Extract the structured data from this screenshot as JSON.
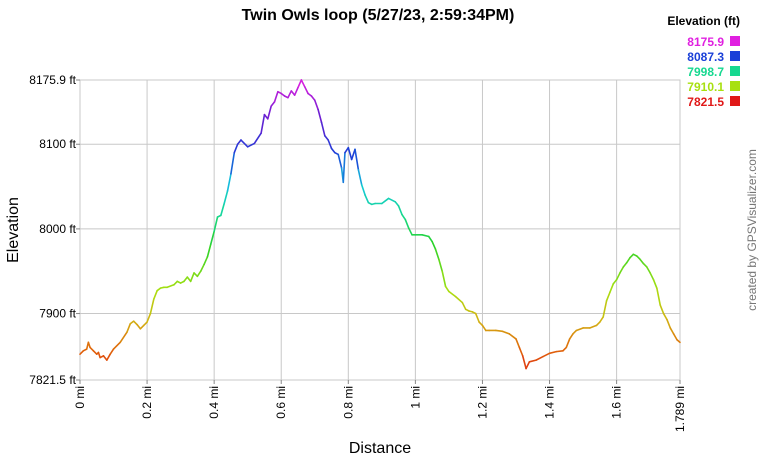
{
  "chart_data": {
    "type": "line",
    "title": "Twin Owls loop (5/27/23, 2:59:34PM)",
    "xlabel": "Distance",
    "ylabel": "Elevation",
    "xlim": [
      0,
      1.789
    ],
    "ylim": [
      7821.5,
      8175.9
    ],
    "x_ticks": [
      {
        "value": 0,
        "label": "0 mi"
      },
      {
        "value": 0.2,
        "label": "0.2 mi"
      },
      {
        "value": 0.4,
        "label": "0.4 mi"
      },
      {
        "value": 0.6,
        "label": "0.6 mi"
      },
      {
        "value": 0.8,
        "label": "0.8 mi"
      },
      {
        "value": 1.0,
        "label": "1 mi"
      },
      {
        "value": 1.2,
        "label": "1.2 mi"
      },
      {
        "value": 1.4,
        "label": "1.4 mi"
      },
      {
        "value": 1.6,
        "label": "1.6 mi"
      },
      {
        "value": 1.789,
        "label": "1.789 mi"
      }
    ],
    "y_ticks": [
      {
        "value": 7821.5,
        "label": "7821.5 ft"
      },
      {
        "value": 7900,
        "label": "7900 ft"
      },
      {
        "value": 8000,
        "label": "8000 ft"
      },
      {
        "value": 8100,
        "label": "8100 ft"
      },
      {
        "value": 8175.9,
        "label": "8175.9 ft"
      }
    ],
    "grid": true,
    "legend": {
      "title": "Elevation (ft)",
      "placement": "top-right",
      "items": [
        {
          "label": "8175.9",
          "color": "#e020e0"
        },
        {
          "label": "8087.3",
          "color": "#1a40d8"
        },
        {
          "label": "7998.7",
          "color": "#16d890"
        },
        {
          "label": "7910.1",
          "color": "#a8e010"
        },
        {
          "label": "7821.5",
          "color": "#e01818"
        }
      ]
    },
    "series": [
      {
        "x": [
          0,
          0.01,
          0.02,
          0.025,
          0.03,
          0.04,
          0.05,
          0.055,
          0.06,
          0.07,
          0.08,
          0.09,
          0.1,
          0.12,
          0.14,
          0.15,
          0.16,
          0.17,
          0.18,
          0.19,
          0.2,
          0.21,
          0.22,
          0.23,
          0.24,
          0.25,
          0.26,
          0.28,
          0.29,
          0.3,
          0.31,
          0.32,
          0.33,
          0.34,
          0.35,
          0.36,
          0.37,
          0.38,
          0.39,
          0.4,
          0.41,
          0.42,
          0.43,
          0.44,
          0.45,
          0.46,
          0.47,
          0.48,
          0.5,
          0.52,
          0.54,
          0.55,
          0.56,
          0.57,
          0.58,
          0.59,
          0.6,
          0.61,
          0.62,
          0.63,
          0.64,
          0.65,
          0.66,
          0.67,
          0.68,
          0.69,
          0.7,
          0.71,
          0.72,
          0.73,
          0.74,
          0.75,
          0.76,
          0.77,
          0.78,
          0.785,
          0.79,
          0.8,
          0.81,
          0.82,
          0.83,
          0.84,
          0.85,
          0.86,
          0.87,
          0.88,
          0.9,
          0.92,
          0.94,
          0.95,
          0.96,
          0.97,
          0.98,
          0.99,
          1.0,
          1.02,
          1.04,
          1.05,
          1.06,
          1.07,
          1.08,
          1.09,
          1.1,
          1.12,
          1.14,
          1.15,
          1.16,
          1.17,
          1.18,
          1.19,
          1.2,
          1.21,
          1.22,
          1.24,
          1.26,
          1.28,
          1.3,
          1.31,
          1.32,
          1.33,
          1.34,
          1.36,
          1.38,
          1.4,
          1.42,
          1.44,
          1.45,
          1.46,
          1.47,
          1.48,
          1.5,
          1.52,
          1.54,
          1.55,
          1.56,
          1.57,
          1.58,
          1.59,
          1.6,
          1.61,
          1.62,
          1.63,
          1.64,
          1.65,
          1.66,
          1.67,
          1.68,
          1.69,
          1.7,
          1.71,
          1.72,
          1.73,
          1.74,
          1.75,
          1.76,
          1.77,
          1.78,
          1.789
        ],
        "y": [
          7852,
          7856,
          7858,
          7866,
          7860,
          7856,
          7852,
          7854,
          7848,
          7850,
          7845,
          7852,
          7858,
          7866,
          7878,
          7888,
          7891,
          7887,
          7882,
          7886,
          7890,
          7900,
          7917,
          7927,
          7930,
          7931,
          7931,
          7934,
          7938,
          7936,
          7938,
          7943,
          7938,
          7948,
          7944,
          7950,
          7958,
          7967,
          7982,
          7997,
          8014,
          8016,
          8030,
          8045,
          8065,
          8090,
          8100,
          8105,
          8097,
          8101,
          8113,
          8135,
          8130,
          8145,
          8150,
          8162,
          8160,
          8157,
          8155,
          8163,
          8158,
          8167,
          8175.9,
          8168,
          8160,
          8157,
          8152,
          8141,
          8126,
          8110,
          8105,
          8095,
          8090,
          8088,
          8072,
          8055,
          8090,
          8096,
          8082,
          8094,
          8070,
          8052,
          8040,
          8031,
          8029,
          8030,
          8030,
          8036,
          8032,
          8027,
          8017,
          8011,
          8001,
          7993,
          7993,
          7993,
          7991,
          7985,
          7976,
          7964,
          7950,
          7932,
          7926,
          7920,
          7913,
          7905,
          7903,
          7902,
          7900,
          7890,
          7886,
          7880,
          7880,
          7880,
          7879,
          7876,
          7870,
          7860,
          7850,
          7835,
          7843,
          7845,
          7849,
          7853,
          7855,
          7856,
          7860,
          7870,
          7876,
          7880,
          7883,
          7883,
          7886,
          7890,
          7896,
          7915,
          7925,
          7935,
          7940,
          7948,
          7955,
          7960,
          7966,
          7970,
          7968,
          7964,
          7959,
          7955,
          7948,
          7940,
          7930,
          7910,
          7900,
          7893,
          7883,
          7876,
          7869,
          7866
        ]
      }
    ]
  },
  "side_text": "created by GPSVisualizer.com"
}
